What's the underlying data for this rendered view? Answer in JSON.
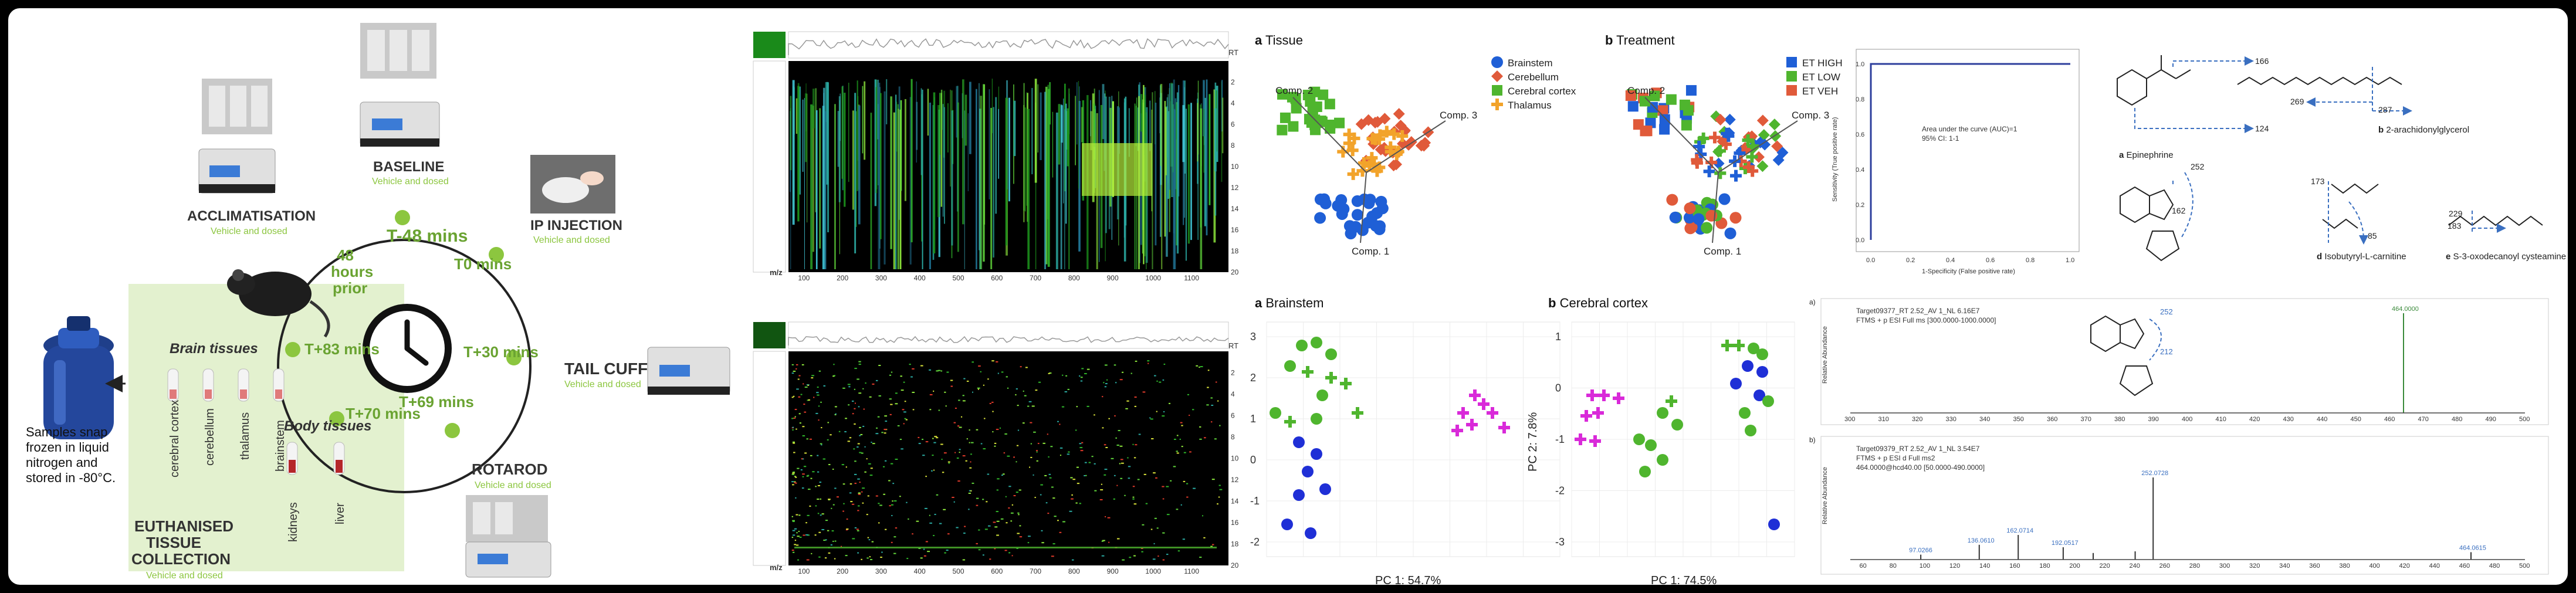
{
  "workflow": {
    "samples_note": [
      "Samples snap",
      "frozen in liquid",
      "nitrogen and",
      "stored in -80°C."
    ],
    "timepoints": [
      "T-48 mins",
      "T0 mins",
      "T+30 mins",
      "T+69 mins",
      "T+70 mins",
      "T+83 mins"
    ],
    "hours_prior": [
      "48",
      "hours",
      "prior"
    ],
    "stages": [
      {
        "name": "ACCLIMATISATION",
        "sub": "Vehicle and dosed"
      },
      {
        "name": "BASELINE",
        "sub": "Vehicle and dosed"
      },
      {
        "name": "IP INJECTION",
        "sub": "Vehicle and dosed"
      },
      {
        "name": "TAIL CUFF",
        "sub": "Vehicle and dosed"
      },
      {
        "name": "ROTAROD",
        "sub": "Vehicle and dosed"
      }
    ],
    "brain_tissues_title": "Brain tissues",
    "brain_tissues": [
      "cerebral cortex",
      "cerebellum",
      "thalamus",
      "brainstem"
    ],
    "body_tissues_title": "Body tissues",
    "body_tissues": [
      "kidneys",
      "liver"
    ],
    "euthanised": [
      "EUTHANISED",
      "TISSUE",
      "COLLECTION",
      "Vehicle and dosed"
    ]
  },
  "heatmaps": {
    "rt_label": "RT",
    "mz_label": "m/z",
    "mz_ticks": [
      100,
      200,
      300,
      400,
      500,
      600,
      700,
      800,
      900,
      1000,
      1100
    ],
    "mz_range": [
      60,
      1200
    ],
    "rt_ticks": [
      2,
      4,
      6,
      8,
      10,
      12,
      14,
      16,
      18,
      20
    ],
    "rt_range": [
      0,
      20
    ]
  },
  "pca_top": [
    {
      "letter": "a",
      "title": "Tissue",
      "axis_labels": [
        "Comp. 1",
        "Comp. 2",
        "Comp. 3"
      ],
      "legend": [
        {
          "name": "Brainstem",
          "color": "#1f5fd6",
          "shape": "circle"
        },
        {
          "name": "Cerebellum",
          "color": "#e05a3a",
          "shape": "diamond"
        },
        {
          "name": "Cerebral cortex",
          "color": "#4fb52e",
          "shape": "square"
        },
        {
          "name": "Thalamus",
          "color": "#f2a32a",
          "shape": "cross"
        }
      ]
    },
    {
      "letter": "b",
      "title": "Treatment",
      "axis_labels": [
        "Comp. 1",
        "Comp. 2",
        "Comp. 3"
      ],
      "legend": [
        {
          "name": "ET HIGH",
          "color": "#1f5fd6",
          "shape": "square"
        },
        {
          "name": "ET LOW",
          "color": "#4fb52e",
          "shape": "square"
        },
        {
          "name": "ET VEH",
          "color": "#e05a3a",
          "shape": "square"
        }
      ]
    }
  ],
  "scatter_bottom": [
    {
      "letter": "a",
      "title": "Brainstem",
      "xlabel": "PC 1: 54.7%",
      "ylabel": "",
      "yticks": [
        3,
        2,
        1,
        0,
        -1,
        -2
      ]
    },
    {
      "letter": "b",
      "title": "Cerebral cortex",
      "xlabel": "PC 1: 74.5%",
      "ylabel": "PC 2: 7.8%",
      "yticks": [
        1,
        0,
        -1,
        -2,
        -3
      ]
    }
  ],
  "roc": {
    "auc_text": "Area under the curve (AUC)=1",
    "ci_text": "95% CI: 1-1",
    "xlabel": "1-Specificity (False positive rate)",
    "ylabel": "Sensitivity (True positive rate)",
    "ticks": [
      0.0,
      0.2,
      0.4,
      0.6,
      0.8,
      1.0
    ]
  },
  "structures": {
    "epinephrine": {
      "letter": "a",
      "name": "Epinephrine",
      "frags": [
        "166",
        "124"
      ]
    },
    "ag": {
      "letter": "b",
      "name": "2-arachidonylglycerol",
      "frags": [
        "269",
        "287"
      ]
    },
    "nucleotide": {
      "frags": [
        "252",
        "162"
      ]
    },
    "carnitine": {
      "letter": "d",
      "name": "Isobutyryl-L-carnitine",
      "frags": [
        "173",
        "85"
      ]
    },
    "cysteamine": {
      "letter": "e",
      "name": "S-3-oxodecanoyl cysteamine",
      "frags": [
        "229",
        "183"
      ]
    }
  },
  "spectra": [
    {
      "letter": "a)",
      "header": [
        "Target09377_RT 2.52_AV 1_NL 6.16E7",
        "FTMS + p ESI Full ms [300.0000-1000.0000]"
      ],
      "ylabel": "Relative Abundance",
      "peak_label": "464.0000",
      "xticks": [
        300,
        310,
        320,
        330,
        340,
        350,
        360,
        370,
        380,
        390,
        400,
        410,
        420,
        430,
        440,
        450,
        460,
        470,
        480,
        490,
        500
      ],
      "xrange": [
        300,
        500
      ],
      "peaks": [
        [
          464.0,
          100
        ]
      ],
      "inset_frags": [
        "252",
        "212"
      ]
    },
    {
      "letter": "b)",
      "header": [
        "Target09379_RT 2.52_AV 1_NL 3.54E7",
        "FTMS + p ESI d Full ms2",
        "464.0000@hcd40.00 [50.0000-490.0000]"
      ],
      "ylabel": "Relative Abundance",
      "xticks": [
        60,
        80,
        100,
        120,
        140,
        160,
        180,
        200,
        220,
        240,
        260,
        280,
        300,
        320,
        340,
        360,
        380,
        400,
        420,
        440,
        460,
        480,
        500
      ],
      "xrange": [
        50,
        500
      ],
      "peaks": [
        [
          97.0,
          6
        ],
        [
          136.0,
          18
        ],
        [
          162.0,
          30
        ],
        [
          192.0,
          15
        ],
        [
          212.0,
          8
        ],
        [
          240.0,
          10
        ],
        [
          252.0,
          100
        ],
        [
          464.0,
          9
        ]
      ],
      "peak_labels": [
        [
          97.0,
          "97.0266"
        ],
        [
          136.0,
          "136.0610"
        ],
        [
          162.0,
          "162.0714"
        ],
        [
          192.0,
          "192.0517"
        ],
        [
          252.0,
          "252.0728"
        ],
        [
          464.0,
          "464.0615"
        ]
      ]
    }
  ]
}
